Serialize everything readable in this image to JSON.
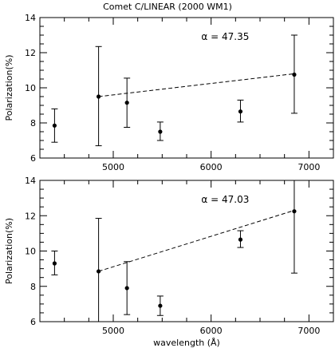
{
  "figure_title": "Comet C/LINEAR (2000 WM1)",
  "chart_data": [
    {
      "type": "scatter",
      "title": "Comet C/LINEAR (2000 WM1)",
      "annotation": "α = 47.35",
      "xlabel": "",
      "ylabel": "Polarization(%)",
      "xlim": [
        4250,
        7250
      ],
      "ylim": [
        6,
        14
      ],
      "x_ticks": [
        5000,
        6000,
        7000
      ],
      "y_ticks": [
        6,
        8,
        10,
        12,
        14
      ],
      "x_tick_labels": [
        "5000",
        "6000",
        "7000"
      ],
      "y_tick_labels": [
        "6",
        "8",
        "10",
        "12",
        "14"
      ],
      "points": [
        {
          "x": 4400,
          "y": 7.85,
          "err_low": 6.9,
          "err_high": 8.8
        },
        {
          "x": 4850,
          "y": 9.5,
          "err_low": 6.7,
          "err_high": 12.35
        },
        {
          "x": 5140,
          "y": 9.15,
          "err_low": 7.75,
          "err_high": 10.55
        },
        {
          "x": 5480,
          "y": 7.5,
          "err_low": 7.0,
          "err_high": 8.05
        },
        {
          "x": 6300,
          "y": 8.65,
          "err_low": 8.05,
          "err_high": 9.3
        },
        {
          "x": 6850,
          "y": 10.75,
          "err_low": 8.55,
          "err_high": 13.0
        }
      ],
      "fit_line": {
        "x": [
          4850,
          6850
        ],
        "y": [
          9.5,
          10.8
        ],
        "style": "dashed"
      }
    },
    {
      "type": "scatter",
      "title": "",
      "annotation": "α = 47.03",
      "xlabel": "wavelength (Å)",
      "ylabel": "Polarization(%)",
      "xlim": [
        4250,
        7250
      ],
      "ylim": [
        6,
        14
      ],
      "x_ticks": [
        5000,
        6000,
        7000
      ],
      "y_ticks": [
        6,
        8,
        10,
        12,
        14
      ],
      "x_tick_labels": [
        "5000",
        "6000",
        "7000"
      ],
      "y_tick_labels": [
        "6",
        "8",
        "10",
        "12",
        "14"
      ],
      "points": [
        {
          "x": 4400,
          "y": 9.3,
          "err_low": 8.65,
          "err_high": 10.0
        },
        {
          "x": 4850,
          "y": 8.85,
          "err_low": 6.0,
          "err_high": 11.85
        },
        {
          "x": 5140,
          "y": 7.9,
          "err_low": 6.4,
          "err_high": 9.4
        },
        {
          "x": 5480,
          "y": 6.9,
          "err_low": 6.35,
          "err_high": 7.45
        },
        {
          "x": 6300,
          "y": 10.65,
          "err_low": 10.2,
          "err_high": 11.15
        },
        {
          "x": 6850,
          "y": 12.25,
          "err_low": 8.75,
          "err_high": 14.0
        }
      ],
      "fit_line": {
        "x": [
          4850,
          6850
        ],
        "y": [
          8.85,
          12.3
        ],
        "style": "dashed"
      }
    }
  ]
}
